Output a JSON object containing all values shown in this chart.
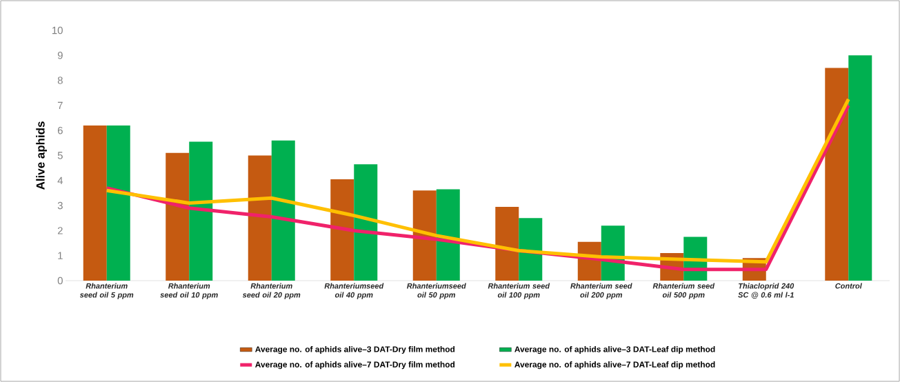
{
  "chart_data": {
    "type": "bar",
    "ylabel": "Alive aphids",
    "categories": [
      "Rhanterium seed oil 5 ppm",
      "Rhanterium seed oil 10 ppm",
      "Rhanterium seed oil 20 ppm",
      "Rhanteriumseed oil 40 ppm",
      "Rhanteriumseed oil 50 ppm",
      "Rhanterium seed oil 100 ppm",
      "Rhanterium seed oil 200 ppm",
      "Rhanterium seed oil 500 ppm",
      "Thiacloprid 240 SC @ 0.6 ml l-1",
      "Control"
    ],
    "series": [
      {
        "name": "Average no. of aphids alive–3 DAT-Dry film method",
        "color": "#c55a11",
        "values": [
          6.2,
          5.1,
          5.0,
          4.05,
          3.6,
          2.95,
          1.55,
          1.1,
          0.9,
          8.5
        ]
      },
      {
        "name": "Average no. of aphids alive–3 DAT-Leaf dip method",
        "color": "#00b050",
        "values": [
          6.2,
          5.55,
          5.6,
          4.65,
          3.65,
          2.5,
          2.2,
          1.75,
          null,
          9.0
        ]
      },
      {
        "name": "Average no. of aphids alive–7 DAT-Dry film method",
        "type": "line",
        "color": "#f0226a",
        "values": [
          3.7,
          2.9,
          2.55,
          2.0,
          1.65,
          1.2,
          0.85,
          0.45,
          0.45,
          7.0
        ]
      },
      {
        "name": "Average no. of aphids alive–7 DAT-Leaf dip method",
        "type": "line",
        "color": "#ffc000",
        "values": [
          3.6,
          3.1,
          3.3,
          2.6,
          1.8,
          1.2,
          0.95,
          0.85,
          0.75,
          7.25
        ]
      }
    ],
    "ylim": [
      0,
      10
    ],
    "yticks": [
      0,
      1,
      2,
      3,
      4,
      5,
      6,
      7,
      8,
      9,
      10
    ],
    "legend": "bottom"
  }
}
